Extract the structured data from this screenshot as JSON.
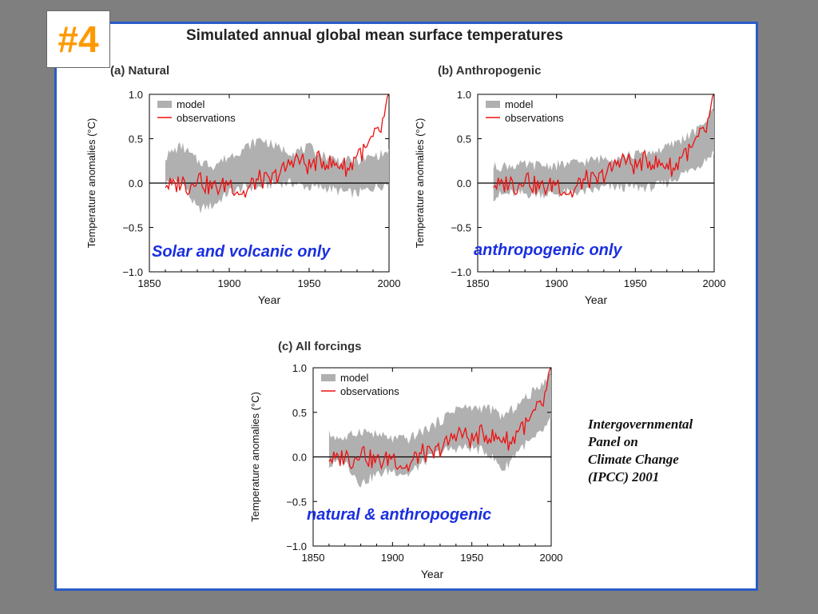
{
  "badge": "#4",
  "main_title": "Simulated annual global mean surface temperatures",
  "credit": [
    "Intergovernmental",
    "Panel on",
    "Climate Change",
    "(IPCC) 2001"
  ],
  "colors": {
    "model": "#b0b0b0",
    "observations": "#ee1111",
    "frame": "#2a5cc7",
    "badge": "#ff9900",
    "overlay_text": "#1a2fe0"
  },
  "chart_data": [
    {
      "type": "line",
      "title": "(a) Natural",
      "overlay_label": "Solar and volcanic only",
      "xlabel": "Year",
      "ylabel": "Temperature anomalies (°C)",
      "xlim": [
        1850,
        2000
      ],
      "ylim": [
        -1.0,
        1.0
      ],
      "xticks": [
        1850,
        1900,
        1950,
        2000
      ],
      "yticks": [
        "1.0",
        "0.5",
        "0.0",
        "−0.5",
        "−1.0"
      ],
      "legend": [
        "model",
        "observations"
      ],
      "legend_position": "top-left",
      "reference_line": 0.0,
      "series": [
        {
          "name": "model",
          "type": "band",
          "x": [
            1860,
            1870,
            1880,
            1890,
            1900,
            1910,
            1920,
            1930,
            1940,
            1950,
            1960,
            1970,
            1980,
            1990,
            2000
          ],
          "low": [
            0.0,
            0.02,
            -0.3,
            -0.25,
            -0.1,
            -0.05,
            -0.05,
            0.0,
            0.0,
            -0.05,
            -0.05,
            -0.1,
            -0.12,
            -0.05,
            0.0
          ],
          "high": [
            0.3,
            0.42,
            0.25,
            0.2,
            0.3,
            0.4,
            0.5,
            0.4,
            0.35,
            0.4,
            0.3,
            0.25,
            0.25,
            0.3,
            0.35
          ]
        },
        {
          "name": "observations",
          "x": [
            1860,
            1865,
            1870,
            1875,
            1880,
            1885,
            1890,
            1895,
            1900,
            1905,
            1910,
            1915,
            1920,
            1925,
            1930,
            1935,
            1940,
            1945,
            1950,
            1955,
            1960,
            1965,
            1970,
            1975,
            1980,
            1985,
            1990,
            1995,
            2000
          ],
          "y": [
            0.0,
            -0.05,
            0.03,
            -0.05,
            0.1,
            -0.02,
            -0.05,
            -0.05,
            0.02,
            -0.08,
            -0.12,
            0.0,
            0.05,
            0.0,
            0.1,
            0.15,
            0.28,
            0.25,
            0.18,
            0.25,
            0.25,
            0.2,
            0.22,
            0.15,
            0.35,
            0.35,
            0.5,
            0.6,
            0.95
          ]
        }
      ]
    },
    {
      "type": "line",
      "title": "(b) Anthropogenic",
      "overlay_label": "anthropogenic only",
      "xlabel": "Year",
      "ylabel": "Temperature anomalies (°C)",
      "xlim": [
        1850,
        2000
      ],
      "ylim": [
        -1.0,
        1.0
      ],
      "xticks": [
        1850,
        1900,
        1950,
        2000
      ],
      "yticks": [
        "1.0",
        "0.5",
        "0.0",
        "−0.5",
        "−1.0"
      ],
      "legend": [
        "model",
        "observations"
      ],
      "legend_position": "top-left",
      "reference_line": 0.0,
      "series": [
        {
          "name": "model",
          "type": "band",
          "x": [
            1860,
            1870,
            1880,
            1890,
            1900,
            1910,
            1920,
            1930,
            1940,
            1950,
            1960,
            1970,
            1980,
            1990,
            2000
          ],
          "low": [
            -0.15,
            -0.12,
            -0.12,
            -0.12,
            -0.12,
            -0.1,
            -0.1,
            -0.05,
            -0.05,
            -0.05,
            -0.05,
            0.0,
            0.1,
            0.2,
            0.35
          ],
          "high": [
            0.18,
            0.2,
            0.2,
            0.2,
            0.2,
            0.22,
            0.25,
            0.28,
            0.3,
            0.32,
            0.35,
            0.4,
            0.5,
            0.6,
            0.85
          ]
        },
        {
          "name": "observations",
          "x": [
            1860,
            1865,
            1870,
            1875,
            1880,
            1885,
            1890,
            1895,
            1900,
            1905,
            1910,
            1915,
            1920,
            1925,
            1930,
            1935,
            1940,
            1945,
            1950,
            1955,
            1960,
            1965,
            1970,
            1975,
            1980,
            1985,
            1990,
            1995,
            2000
          ],
          "y": [
            0.0,
            -0.05,
            0.03,
            -0.05,
            0.1,
            -0.02,
            -0.05,
            -0.05,
            0.02,
            -0.08,
            -0.12,
            0.0,
            0.05,
            0.0,
            0.1,
            0.15,
            0.28,
            0.25,
            0.18,
            0.25,
            0.25,
            0.2,
            0.22,
            0.15,
            0.35,
            0.35,
            0.5,
            0.6,
            0.95
          ]
        }
      ]
    },
    {
      "type": "line",
      "title": "(c) All forcings",
      "overlay_label": "natural & anthropogenic",
      "xlabel": "Year",
      "ylabel": "Temperature anomalies (°C)",
      "xlim": [
        1850,
        2000
      ],
      "ylim": [
        -1.0,
        1.0
      ],
      "xticks": [
        1850,
        1900,
        1950,
        2000
      ],
      "yticks": [
        "1.0",
        "0.5",
        "0.0",
        "−0.5",
        "−1.0"
      ],
      "legend": [
        "model",
        "observations"
      ],
      "legend_position": "top-left",
      "reference_line": 0.0,
      "series": [
        {
          "name": "model",
          "type": "band",
          "x": [
            1860,
            1870,
            1880,
            1890,
            1900,
            1910,
            1920,
            1930,
            1940,
            1950,
            1960,
            1970,
            1980,
            1990,
            2000
          ],
          "low": [
            -0.1,
            -0.05,
            -0.3,
            -0.2,
            -0.15,
            -0.2,
            -0.05,
            0.05,
            0.1,
            0.1,
            0.05,
            -0.15,
            0.1,
            0.2,
            0.4
          ],
          "high": [
            0.25,
            0.2,
            0.3,
            0.25,
            0.2,
            0.2,
            0.3,
            0.4,
            0.55,
            0.55,
            0.55,
            0.45,
            0.6,
            0.75,
            0.95
          ]
        },
        {
          "name": "observations",
          "x": [
            1860,
            1865,
            1870,
            1875,
            1880,
            1885,
            1890,
            1895,
            1900,
            1905,
            1910,
            1915,
            1920,
            1925,
            1930,
            1935,
            1940,
            1945,
            1950,
            1955,
            1960,
            1965,
            1970,
            1975,
            1980,
            1985,
            1990,
            1995,
            2000
          ],
          "y": [
            0.0,
            -0.05,
            0.03,
            -0.05,
            0.1,
            -0.02,
            -0.05,
            -0.05,
            0.02,
            -0.08,
            -0.12,
            0.0,
            0.05,
            0.0,
            0.1,
            0.15,
            0.28,
            0.25,
            0.18,
            0.25,
            0.25,
            0.2,
            0.22,
            0.15,
            0.35,
            0.35,
            0.5,
            0.6,
            0.95
          ]
        }
      ]
    }
  ]
}
